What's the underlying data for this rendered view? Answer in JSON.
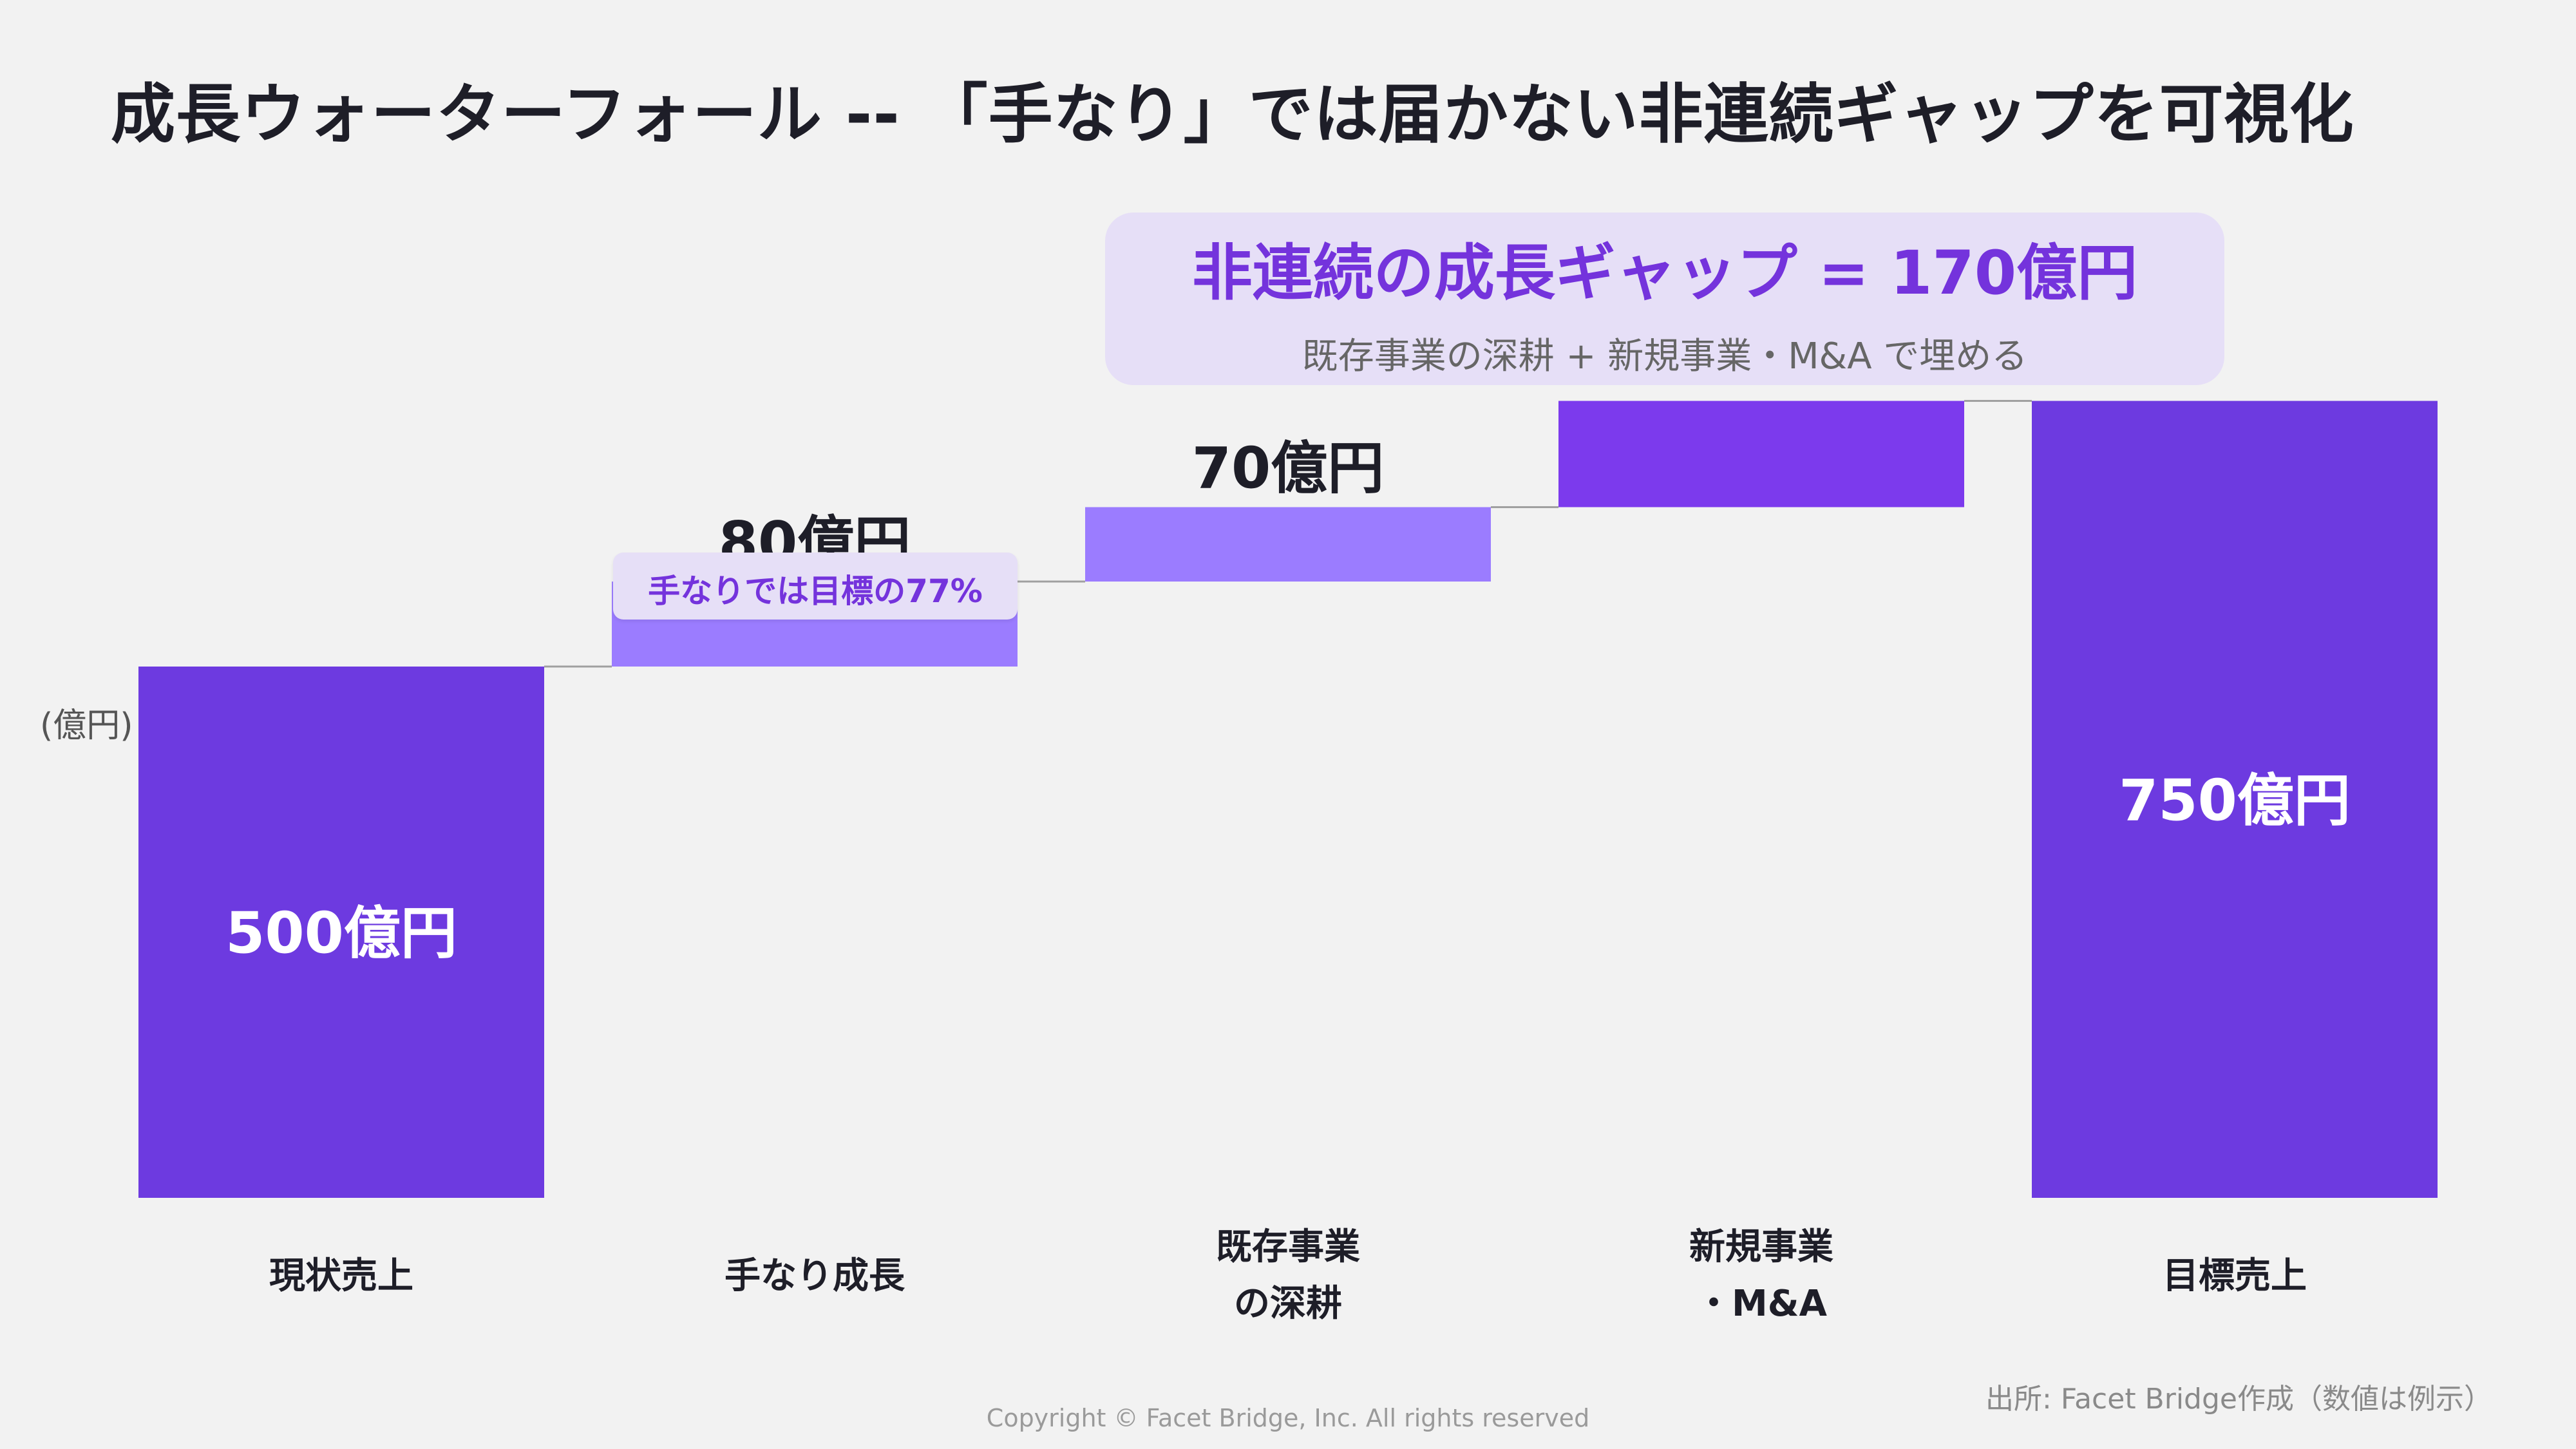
{
  "page": {
    "title": "成長ウォーターフォール -- 「手なり」では届かない非連続ギャップを可視化",
    "source": "出所: Facet Bridge作成（数値は例示）",
    "copyright": "Copyright © Facet Bridge, Inc. All rights reserved"
  },
  "callouts": {
    "gap_title": "非連続の成長ギャップ = 170億円",
    "gap_subtitle": "既存事業の深耕 + 新規事業・M&A で埋める",
    "organic_note": "手なりでは目標の77%"
  },
  "chart_data": {
    "type": "bar",
    "subtype": "waterfall",
    "unit_label": "(億円)",
    "categories": [
      [
        "現状売上"
      ],
      [
        "手なり成長"
      ],
      [
        "既存事業",
        "の深耕"
      ],
      [
        "新規事業",
        "・M&A"
      ],
      [
        "目標売上"
      ]
    ],
    "values": [
      500,
      80,
      70,
      100,
      750
    ],
    "kinds": [
      "total",
      "increment",
      "increment",
      "increment",
      "total"
    ],
    "data_labels": [
      "500億円",
      "80億円",
      "70億円",
      "",
      "750億円"
    ],
    "ylim": [
      0,
      750
    ],
    "colors": {
      "total": "#6d3ae0",
      "organic": "#9b7cff",
      "existing": "#9b7cff",
      "new": "#7c3aed",
      "connector": "#a0a0a0"
    },
    "grid": false,
    "legend": "none"
  }
}
